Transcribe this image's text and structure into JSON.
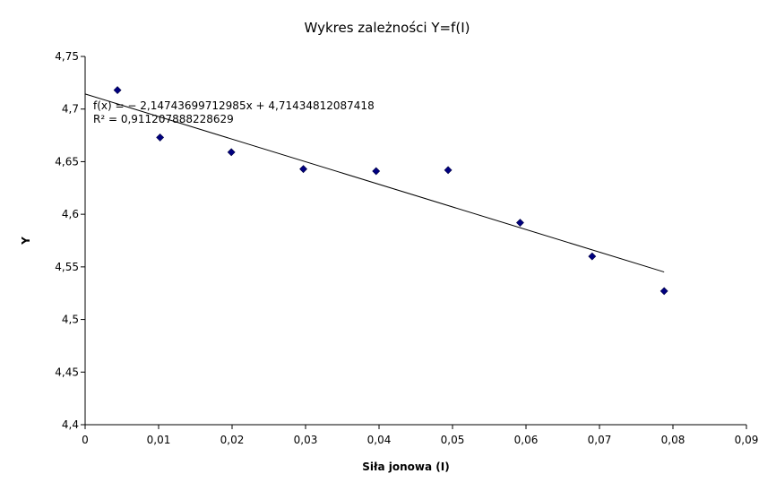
{
  "chart_data": {
    "type": "scatter",
    "title": "Wykres zależności Y=f(I)",
    "xlabel": "Siła jonowa (I)",
    "ylabel": "Y",
    "xlim": [
      0,
      0.09
    ],
    "ylim": [
      4.4,
      4.75
    ],
    "x_ticks": [
      "0",
      "0,01",
      "0,02",
      "0,03",
      "0,04",
      "0,05",
      "0,06",
      "0,07",
      "0,08",
      "0,09"
    ],
    "y_ticks": [
      "4,4",
      "4,45",
      "4,5",
      "4,55",
      "4,6",
      "4,65",
      "4,7",
      "4,75"
    ],
    "grid": false,
    "marker_color": "#000080",
    "series": [
      {
        "x": [
          0.0044,
          0.0102,
          0.0199,
          0.0297,
          0.0396,
          0.0494,
          0.0592,
          0.069,
          0.0788
        ],
        "y": [
          4.718,
          4.673,
          4.659,
          4.643,
          4.641,
          4.642,
          4.592,
          4.56,
          4.527
        ]
      }
    ],
    "trendline": {
      "slope": -2.14743699712985,
      "intercept": 4.71434812087418,
      "x_range": [
        0,
        0.0788
      ]
    },
    "annotations": [
      "f(x) =  − 2,14743699712985x + 4,71434812087418",
      "R² = 0,911207888228629"
    ]
  }
}
